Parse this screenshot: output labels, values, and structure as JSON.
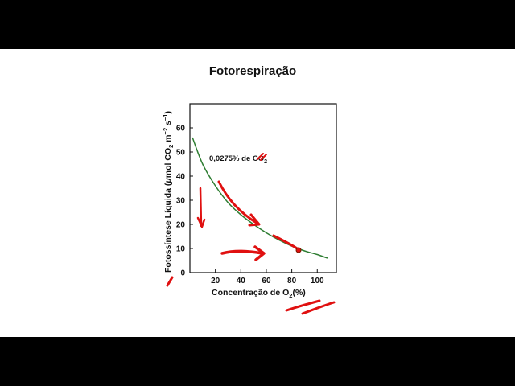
{
  "page": {
    "title": "Fotorespiração"
  },
  "chart_data": {
    "type": "line",
    "title": "Fotorespiração",
    "xlabel_parts": [
      "Concentração de O",
      "2",
      "(%)"
    ],
    "ylabel_parts": [
      "Fotossíntese Líquida (",
      "μ",
      "mol CO",
      "2",
      " m",
      "−2",
      " s",
      "−1",
      ")"
    ],
    "annotation_parts": [
      "0,0275% de CO",
      "2"
    ],
    "xlim": [
      0,
      115
    ],
    "ylim": [
      0,
      70
    ],
    "x_ticks": [
      20,
      40,
      60,
      80,
      100
    ],
    "x_tick_labels": [
      "20",
      "40",
      "60",
      "80",
      "100"
    ],
    "y_ticks": [
      0,
      10,
      20,
      30,
      40,
      50,
      60
    ],
    "y_tick_labels": [
      "0",
      "10",
      "20",
      "30",
      "40",
      "50",
      "60"
    ],
    "series": [
      {
        "color": "#2e7d32",
        "x": [
          2,
          10,
          20,
          30,
          40,
          50,
          60,
          70,
          80,
          90,
          100,
          108
        ],
        "y": [
          56,
          45,
          36,
          29,
          24,
          20,
          16.5,
          13.5,
          11,
          9,
          7.5,
          6
        ]
      }
    ],
    "grid": false
  },
  "colors": {
    "ink": "#e01010",
    "curve": "#2e7d32",
    "axis": "#111111"
  }
}
